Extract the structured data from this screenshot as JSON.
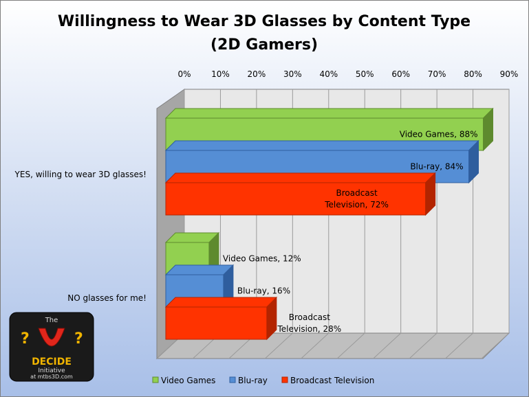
{
  "chart_data": {
    "type": "bar",
    "orientation": "horizontal",
    "three_d": true,
    "title_lines": [
      "Willingness to Wear  3D Glasses by Content Type",
      "(2D Gamers)"
    ],
    "categories": [
      "YES, willing to wear 3D glasses!",
      "NO glasses for me!"
    ],
    "series": [
      {
        "name": "Video Games",
        "values": [
          88,
          12
        ],
        "labels": [
          "Video Games, 88%",
          "Video Games, 12%"
        ]
      },
      {
        "name": "Blu-ray",
        "values": [
          84,
          16
        ],
        "labels": [
          "Blu-ray, 84%",
          "Blu-ray, 16%"
        ]
      },
      {
        "name": "Broadcast Television",
        "values": [
          72,
          28
        ],
        "labels": [
          "Broadcast Television, 72%",
          "Broadcast Television, 28%"
        ]
      }
    ],
    "xlim": [
      0,
      90
    ],
    "ticks": [
      "0%",
      "10%",
      "20%",
      "30%",
      "40%",
      "50%",
      "60%",
      "70%",
      "80%",
      "90%"
    ],
    "grid": true,
    "legend": "bottom"
  },
  "colors": {
    "video_games": "#92D050",
    "blu_ray": "#558ED5",
    "broadcast": "#FF3300",
    "video_games_dark": "#5E8A2E",
    "blu_ray_dark": "#2F5E9E",
    "broadcast_dark": "#B32400"
  },
  "logo": {
    "line1": "The",
    "line2": "DECIDE",
    "line3": "Initiative",
    "line4": "at mtbs3D.com"
  }
}
